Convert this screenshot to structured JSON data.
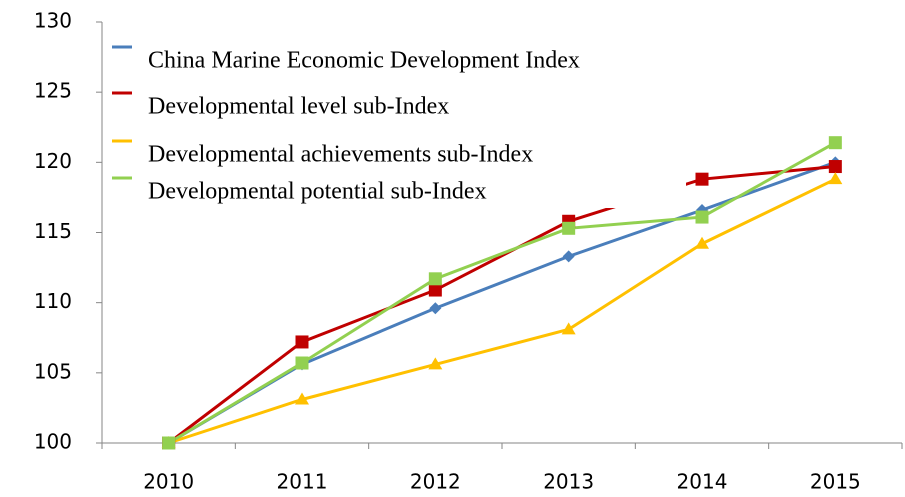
{
  "chart_data": {
    "type": "line",
    "categories": [
      "2010",
      "2011",
      "2012",
      "2013",
      "2014",
      "2015"
    ],
    "series": [
      {
        "name": "China Marine Economic Development Index",
        "color": "#4a7ebb",
        "marker": "diamond",
        "values": [
          100,
          105.6,
          109.6,
          113.3,
          116.6,
          120.0
        ]
      },
      {
        "name": "Developmental level sub-Index",
        "color": "#c00000",
        "marker": "square",
        "values": [
          100,
          107.2,
          110.9,
          115.8,
          118.8,
          119.7
        ]
      },
      {
        "name": "Developmental achievements sub-Index",
        "color": "#ffc000",
        "marker": "triangle",
        "values": [
          100,
          103.1,
          105.6,
          108.1,
          114.2,
          118.8
        ]
      },
      {
        "name": "Developmental potential sub-Index",
        "color": "#92d050",
        "marker": "square",
        "values": [
          100,
          105.7,
          111.7,
          115.3,
          116.1,
          121.4
        ]
      }
    ],
    "ylim": [
      100,
      130
    ],
    "yticks": [
      100,
      105,
      110,
      115,
      120,
      125,
      130
    ],
    "grid": false,
    "legend": "top-left"
  }
}
